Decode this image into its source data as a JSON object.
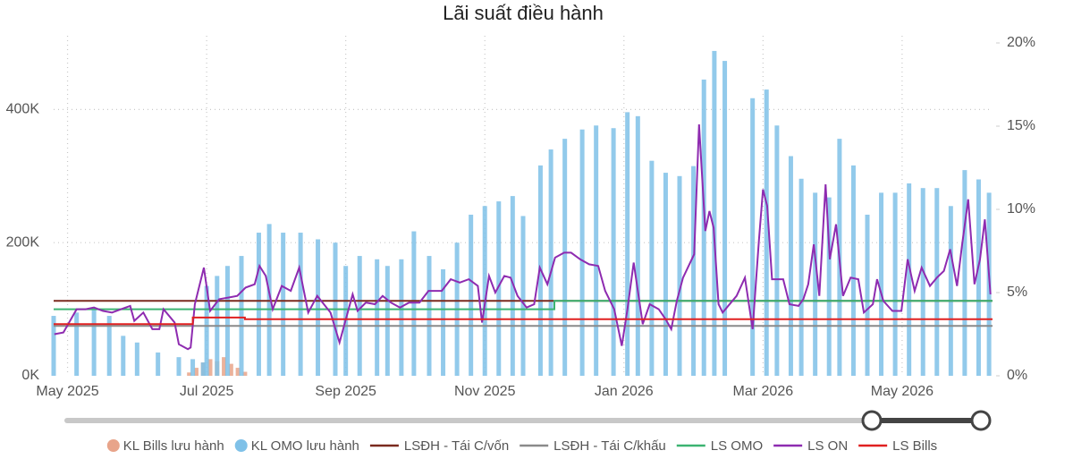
{
  "chart_data": {
    "type": "combo",
    "title": "Lãi suất điều hành",
    "xlim": [
      -0.2,
      13.3
    ],
    "xticks": [
      {
        "value": 0,
        "label": "May 2025"
      },
      {
        "value": 2,
        "label": "Jul 2025"
      },
      {
        "value": 4,
        "label": "Sep 2025"
      },
      {
        "value": 6,
        "label": "Nov 2025"
      },
      {
        "value": 8,
        "label": "Jan 2026"
      },
      {
        "value": 10,
        "label": "Mar 2026"
      },
      {
        "value": 12,
        "label": "May 2026"
      }
    ],
    "ylim": [
      0,
      500000
    ],
    "yticks": [
      {
        "value": 0,
        "label": "0K"
      },
      {
        "value": 200000,
        "label": "200K"
      },
      {
        "value": 400000,
        "label": "400K"
      }
    ],
    "y2lim": [
      0,
      20
    ],
    "y2ticks": [
      {
        "value": 0,
        "label": "0%"
      },
      {
        "value": 5,
        "label": "5%"
      },
      {
        "value": 10,
        "label": "10%"
      },
      {
        "value": 15,
        "label": "15%"
      },
      {
        "value": 20,
        "label": "20%"
      }
    ],
    "grid": true,
    "series": [
      {
        "name": "KL Bills lưu hành",
        "type": "bar",
        "color": "#e8a48a",
        "x": [
          1.75,
          1.85,
          1.95,
          2.05,
          2.15,
          2.25,
          2.35,
          2.45,
          2.55
        ],
        "values": [
          5000,
          12000,
          20000,
          25000,
          22000,
          28000,
          18000,
          12000,
          6000
        ]
      },
      {
        "name": "KL OMO lưu hành",
        "type": "bar",
        "color": "#7fc1e8",
        "x": [
          -0.2,
          0.13,
          0.38,
          0.6,
          0.8,
          1.0,
          1.3,
          1.6,
          1.8,
          1.95,
          2.0,
          2.15,
          2.3,
          2.5,
          2.75,
          2.9,
          3.1,
          3.35,
          3.6,
          3.85,
          4.0,
          4.2,
          4.45,
          4.6,
          4.8,
          4.98,
          5.2,
          5.4,
          5.6,
          5.8,
          6.0,
          6.2,
          6.4,
          6.55,
          6.8,
          6.95,
          7.15,
          7.4,
          7.6,
          7.85,
          8.05,
          8.2,
          8.4,
          8.6,
          8.8,
          9.0,
          9.15,
          9.3,
          9.45,
          9.85,
          10.05,
          10.2,
          10.4,
          10.55,
          10.75,
          10.95,
          11.1,
          11.3,
          11.5,
          11.7,
          11.9,
          12.1,
          12.3,
          12.5,
          12.7,
          12.9,
          13.1,
          13.25
        ],
        "values": [
          90000,
          95000,
          100000,
          90000,
          60000,
          50000,
          35000,
          28000,
          25000,
          20000,
          135000,
          150000,
          165000,
          180000,
          215000,
          228000,
          215000,
          215000,
          205000,
          200000,
          165000,
          180000,
          175000,
          165000,
          175000,
          217000,
          180000,
          160000,
          200000,
          242000,
          255000,
          262000,
          270000,
          240000,
          316000,
          340000,
          356000,
          370000,
          376000,
          372000,
          396000,
          390000,
          323000,
          305000,
          300000,
          315000,
          445000,
          488000,
          473000,
          417000,
          430000,
          376000,
          330000,
          296000,
          275000,
          268000,
          356000,
          316000,
          242000,
          275000,
          275000,
          289000,
          282000,
          282000,
          255000,
          309000,
          295000,
          275000
        ]
      },
      {
        "name": "LSĐH - Tái C/vốn",
        "type": "line",
        "axis": "y2",
        "color": "#7a2a1e",
        "x": [
          -0.2,
          13.3
        ],
        "values": [
          4.5,
          4.5
        ]
      },
      {
        "name": "LSĐH - Tái C/khấu",
        "type": "line",
        "axis": "y2",
        "color": "#8a8a8a",
        "x": [
          -0.2,
          13.3
        ],
        "values": [
          3.0,
          3.0
        ]
      },
      {
        "name": "LS OMO",
        "type": "line",
        "axis": "y2",
        "color": "#3cb371",
        "x": [
          -0.2,
          7.0,
          7.0,
          13.3
        ],
        "values": [
          4.0,
          4.0,
          4.5,
          4.5
        ]
      },
      {
        "name": "LS ON",
        "type": "line",
        "axis": "y2",
        "color": "#8e2bb0",
        "x": [
          -0.19,
          -0.06,
          0.13,
          0.26,
          0.38,
          0.51,
          0.64,
          0.77,
          0.9,
          0.96,
          1.09,
          1.22,
          1.32,
          1.38,
          1.54,
          1.6,
          1.73,
          1.77,
          1.83,
          1.96,
          2.05,
          2.18,
          2.31,
          2.44,
          2.56,
          2.69,
          2.76,
          2.85,
          2.95,
          3.08,
          3.21,
          3.33,
          3.46,
          3.59,
          3.78,
          3.91,
          4.1,
          4.17,
          4.29,
          4.42,
          4.53,
          4.65,
          4.78,
          4.91,
          5.06,
          5.19,
          5.38,
          5.51,
          5.64,
          5.77,
          5.9,
          5.96,
          6.06,
          6.15,
          6.28,
          6.37,
          6.47,
          6.6,
          6.71,
          6.79,
          6.9,
          7.01,
          7.14,
          7.24,
          7.37,
          7.5,
          7.63,
          7.73,
          7.86,
          7.97,
          8.05,
          8.14,
          8.27,
          8.37,
          8.5,
          8.6,
          8.68,
          8.76,
          8.85,
          9.01,
          9.08,
          9.17,
          9.23,
          9.29,
          9.36,
          9.42,
          9.62,
          9.74,
          9.85,
          9.94,
          10.0,
          10.06,
          10.13,
          10.29,
          10.38,
          10.51,
          10.58,
          10.65,
          10.73,
          10.81,
          10.9,
          10.96,
          11.05,
          11.15,
          11.26,
          11.37,
          11.45,
          11.58,
          11.64,
          11.73,
          11.86,
          11.99,
          12.08,
          12.18,
          12.28,
          12.4,
          12.5,
          12.6,
          12.69,
          12.79,
          12.86,
          12.95,
          13.04,
          13.12,
          13.19,
          13.27
        ],
        "values": [
          2.5,
          2.6,
          4.0,
          4.0,
          4.1,
          3.9,
          3.8,
          4.0,
          4.2,
          3.3,
          3.8,
          2.8,
          2.8,
          4.0,
          3.2,
          1.9,
          1.6,
          1.7,
          4.3,
          6.5,
          3.9,
          4.6,
          4.7,
          4.8,
          5.3,
          5.5,
          6.6,
          6.0,
          4.0,
          5.4,
          5.1,
          6.5,
          3.8,
          4.8,
          3.8,
          2.0,
          4.9,
          3.9,
          4.4,
          4.3,
          4.8,
          4.4,
          4.1,
          4.4,
          4.4,
          5.1,
          5.1,
          5.8,
          5.6,
          5.8,
          5.4,
          3.2,
          6.0,
          5.0,
          6.0,
          5.9,
          4.8,
          4.1,
          4.3,
          6.5,
          5.5,
          7.1,
          7.4,
          7.4,
          7.0,
          6.7,
          6.6,
          5.1,
          4.0,
          1.8,
          4.0,
          6.8,
          3.1,
          4.3,
          4.0,
          3.4,
          2.8,
          4.5,
          5.9,
          7.3,
          15.1,
          8.7,
          9.9,
          8.9,
          4.3,
          3.8,
          4.8,
          5.9,
          2.8,
          8.1,
          11.2,
          10.2,
          5.8,
          5.8,
          4.3,
          4.2,
          4.6,
          5.5,
          7.9,
          4.8,
          11.5,
          7.0,
          9.1,
          4.8,
          5.9,
          5.8,
          3.8,
          4.3,
          5.8,
          4.5,
          3.9,
          3.9,
          7.0,
          5.1,
          6.5,
          5.4,
          5.9,
          6.3,
          7.6,
          5.4,
          7.8,
          10.6,
          5.5,
          7.0,
          9.4,
          4.9
        ]
      },
      {
        "name": "LS Bills",
        "type": "line",
        "axis": "y2",
        "color": "#e02020",
        "x": [
          -0.2,
          1.8,
          1.8,
          2.55,
          2.55,
          13.3
        ],
        "values": [
          3.1,
          3.1,
          3.5,
          3.5,
          3.4,
          3.4
        ]
      }
    ]
  }
}
